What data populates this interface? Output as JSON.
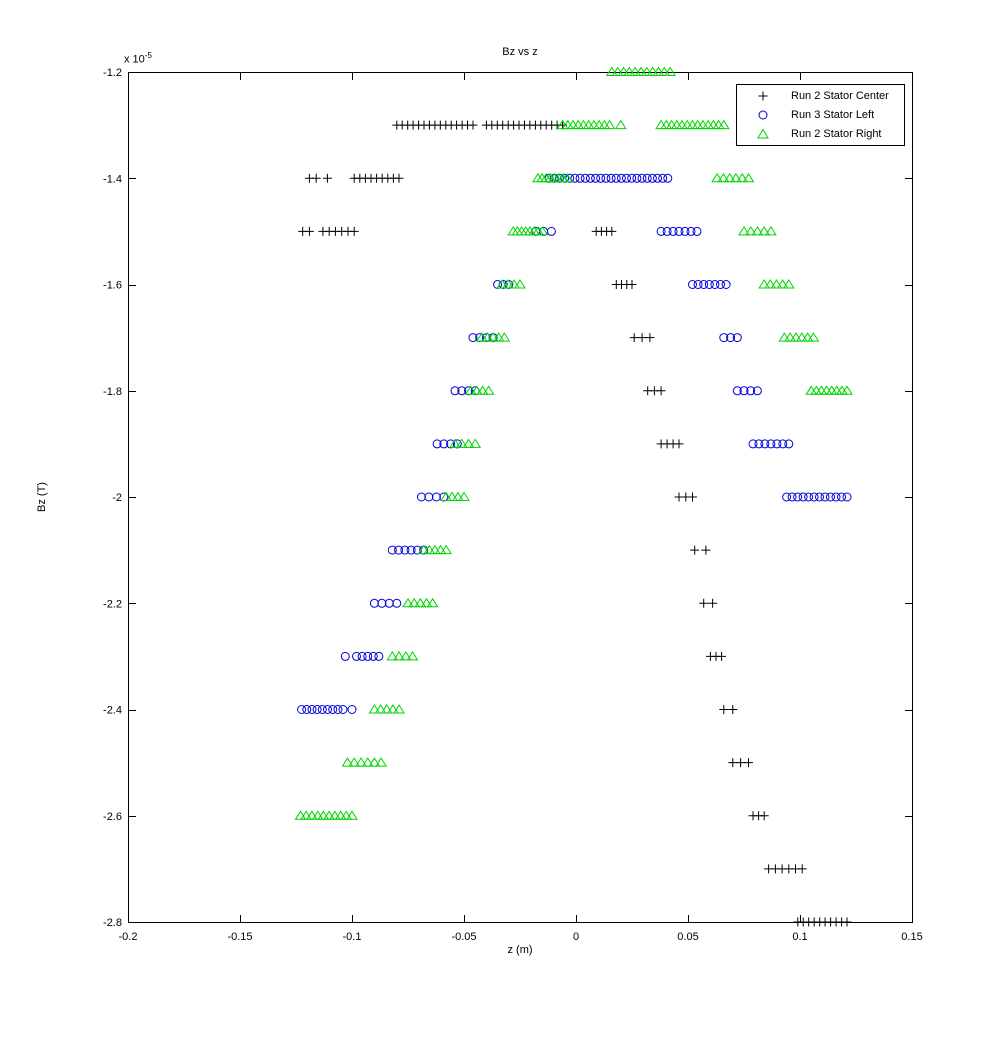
{
  "figure": {
    "y_exponent_prefix": "x 10",
    "y_exponent_power": "-5"
  },
  "chart_data": {
    "type": "scatter",
    "title": "Bz vs z",
    "xlabel": "z (m)",
    "ylabel": "Bz (T)",
    "y_unit_scale": "1e-5",
    "xlim": [
      -0.2,
      0.15
    ],
    "ylim": [
      -2.8,
      -1.2
    ],
    "grid": false,
    "xticks": {
      "values": [
        -0.2,
        -0.15,
        -0.1,
        -0.05,
        0,
        0.05,
        0.1,
        0.15
      ],
      "labels": [
        "-0.2",
        "-0.15",
        "-0.1",
        "-0.05",
        "0",
        "0.05",
        "0.1",
        "0.15"
      ]
    },
    "yticks": {
      "values": [
        -1.2,
        -1.4,
        -1.6,
        -1.8,
        -2,
        -2.2,
        -2.4,
        -2.6,
        -2.8
      ],
      "labels": [
        "-1.2",
        "-1.4",
        "-1.6",
        "-1.8",
        "-2",
        "-2.2",
        "-2.4",
        "-2.6",
        "-2.8"
      ]
    },
    "legend": {
      "position": "top-right"
    },
    "runs_format": "Each run is [Bz (x1e-5 T), z_start (m), z_end (m), point_count]; points evenly spaced between z_start and z_end at constant Bz",
    "series": [
      {
        "name": "Run 2 Stator Center",
        "marker": "plus",
        "color": "#000000",
        "runs": [
          [
            -1.3,
            -0.08,
            -0.046,
            15
          ],
          [
            -1.3,
            -0.04,
            -0.006,
            15
          ],
          [
            -1.4,
            -0.119,
            -0.116,
            2
          ],
          [
            -1.4,
            -0.111,
            -0.111,
            1
          ],
          [
            -1.4,
            -0.099,
            -0.079,
            9
          ],
          [
            -1.5,
            -0.122,
            -0.119,
            2
          ],
          [
            -1.5,
            -0.113,
            -0.099,
            6
          ],
          [
            -1.5,
            0.009,
            0.016,
            4
          ],
          [
            -1.6,
            0.018,
            0.025,
            4
          ],
          [
            -1.7,
            0.026,
            0.033,
            3
          ],
          [
            -1.8,
            0.032,
            0.038,
            3
          ],
          [
            -1.9,
            0.038,
            0.046,
            4
          ],
          [
            -2.0,
            0.046,
            0.052,
            3
          ],
          [
            -2.1,
            0.053,
            0.058,
            2
          ],
          [
            -2.2,
            0.057,
            0.061,
            2
          ],
          [
            -2.3,
            0.06,
            0.065,
            3
          ],
          [
            -2.4,
            0.066,
            0.07,
            2
          ],
          [
            -2.5,
            0.07,
            0.077,
            3
          ],
          [
            -2.6,
            0.079,
            0.084,
            3
          ],
          [
            -2.7,
            0.086,
            0.101,
            6
          ],
          [
            -2.8,
            0.099,
            0.121,
            10
          ]
        ]
      },
      {
        "name": "Run 3 Stator Left",
        "marker": "circle",
        "color": "#0000DD",
        "runs": [
          [
            -1.4,
            -0.012,
            0.041,
            24
          ],
          [
            -1.5,
            -0.018,
            -0.011,
            3
          ],
          [
            -1.5,
            0.038,
            0.054,
            7
          ],
          [
            -1.6,
            -0.035,
            -0.03,
            3
          ],
          [
            -1.6,
            0.052,
            0.067,
            7
          ],
          [
            -1.7,
            -0.046,
            -0.037,
            4
          ],
          [
            -1.7,
            0.066,
            0.072,
            3
          ],
          [
            -1.8,
            -0.054,
            -0.045,
            4
          ],
          [
            -1.8,
            0.072,
            0.081,
            4
          ],
          [
            -1.9,
            -0.062,
            -0.053,
            4
          ],
          [
            -1.9,
            0.079,
            0.095,
            7
          ],
          [
            -2.0,
            -0.069,
            -0.059,
            4
          ],
          [
            -2.0,
            0.094,
            0.121,
            12
          ],
          [
            -2.1,
            -0.082,
            -0.068,
            6
          ],
          [
            -2.2,
            -0.09,
            -0.08,
            4
          ],
          [
            -2.3,
            -0.103,
            -0.103,
            1
          ],
          [
            -2.3,
            -0.098,
            -0.088,
            5
          ],
          [
            -2.4,
            -0.1225,
            -0.104,
            9
          ],
          [
            -2.4,
            -0.1,
            -0.1,
            1
          ]
        ]
      },
      {
        "name": "Run 2 Stator Right",
        "marker": "triangle",
        "color": "#00D500",
        "runs": [
          [
            -1.2,
            0.016,
            0.042,
            11
          ],
          [
            -1.3,
            -0.006,
            0.015,
            10
          ],
          [
            -1.3,
            0.02,
            0.02,
            1
          ],
          [
            -1.3,
            0.038,
            0.066,
            13
          ],
          [
            -1.4,
            -0.017,
            -0.004,
            8
          ],
          [
            -1.4,
            0.063,
            0.077,
            6
          ],
          [
            -1.5,
            -0.028,
            -0.015,
            8
          ],
          [
            -1.5,
            0.075,
            0.087,
            5
          ],
          [
            -1.6,
            -0.033,
            -0.025,
            4
          ],
          [
            -1.6,
            0.084,
            0.095,
            5
          ],
          [
            -1.7,
            -0.042,
            -0.032,
            5
          ],
          [
            -1.7,
            0.093,
            0.106,
            6
          ],
          [
            -1.8,
            -0.047,
            -0.039,
            4
          ],
          [
            -1.8,
            0.105,
            0.121,
            8
          ],
          [
            -1.9,
            -0.054,
            -0.045,
            4
          ],
          [
            -2.0,
            -0.058,
            -0.05,
            4
          ],
          [
            -2.1,
            -0.068,
            -0.058,
            5
          ],
          [
            -2.2,
            -0.075,
            -0.064,
            5
          ],
          [
            -2.3,
            -0.082,
            -0.073,
            4
          ],
          [
            -2.4,
            -0.09,
            -0.079,
            5
          ],
          [
            -2.5,
            -0.102,
            -0.087,
            6
          ],
          [
            -2.6,
            -0.123,
            -0.1,
            10
          ]
        ]
      }
    ]
  }
}
